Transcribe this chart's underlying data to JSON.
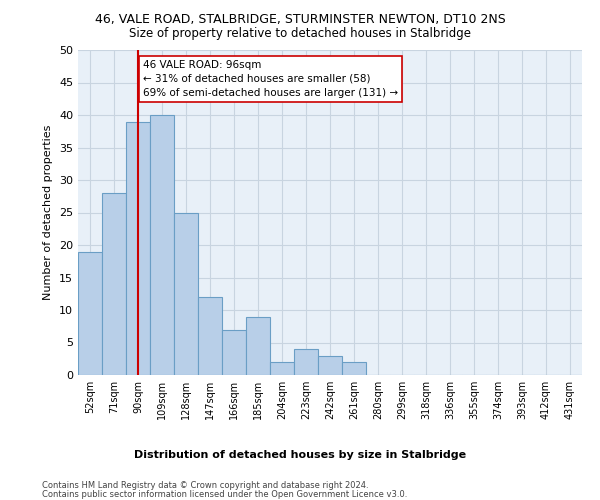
{
  "title": "46, VALE ROAD, STALBRIDGE, STURMINSTER NEWTON, DT10 2NS",
  "subtitle": "Size of property relative to detached houses in Stalbridge",
  "xlabel": "Distribution of detached houses by size in Stalbridge",
  "ylabel": "Number of detached properties",
  "categories": [
    "52sqm",
    "71sqm",
    "90sqm",
    "109sqm",
    "128sqm",
    "147sqm",
    "166sqm",
    "185sqm",
    "204sqm",
    "223sqm",
    "242sqm",
    "261sqm",
    "280sqm",
    "299sqm",
    "318sqm",
    "336sqm",
    "355sqm",
    "374sqm",
    "393sqm",
    "412sqm",
    "431sqm"
  ],
  "values": [
    19,
    28,
    39,
    40,
    25,
    12,
    7,
    9,
    2,
    4,
    3,
    2,
    0,
    0,
    0,
    0,
    0,
    0,
    0,
    0,
    0
  ],
  "bar_color": "#b8cfe8",
  "bar_edge_color": "#6a9ec5",
  "vline_x_index": 2,
  "vline_color": "#cc0000",
  "ylim": [
    0,
    50
  ],
  "yticks": [
    0,
    5,
    10,
    15,
    20,
    25,
    30,
    35,
    40,
    45,
    50
  ],
  "annotation_line1": "46 VALE ROAD: 96sqm",
  "annotation_line2": "← 31% of detached houses are smaller (58)",
  "annotation_line3": "69% of semi-detached houses are larger (131) →",
  "annotation_box_color": "#ffffff",
  "annotation_box_edge_color": "#cc0000",
  "footer1": "Contains HM Land Registry data © Crown copyright and database right 2024.",
  "footer2": "Contains public sector information licensed under the Open Government Licence v3.0.",
  "background_color": "#ffffff",
  "plot_bg_color": "#e8f0f8",
  "grid_color": "#c8d4e0",
  "title_fontsize": 9,
  "subtitle_fontsize": 8.5,
  "ylabel_fontsize": 8,
  "xtick_fontsize": 7,
  "ytick_fontsize": 8,
  "xlabel_fontsize": 8,
  "footer_fontsize": 6,
  "annot_fontsize": 7.5
}
